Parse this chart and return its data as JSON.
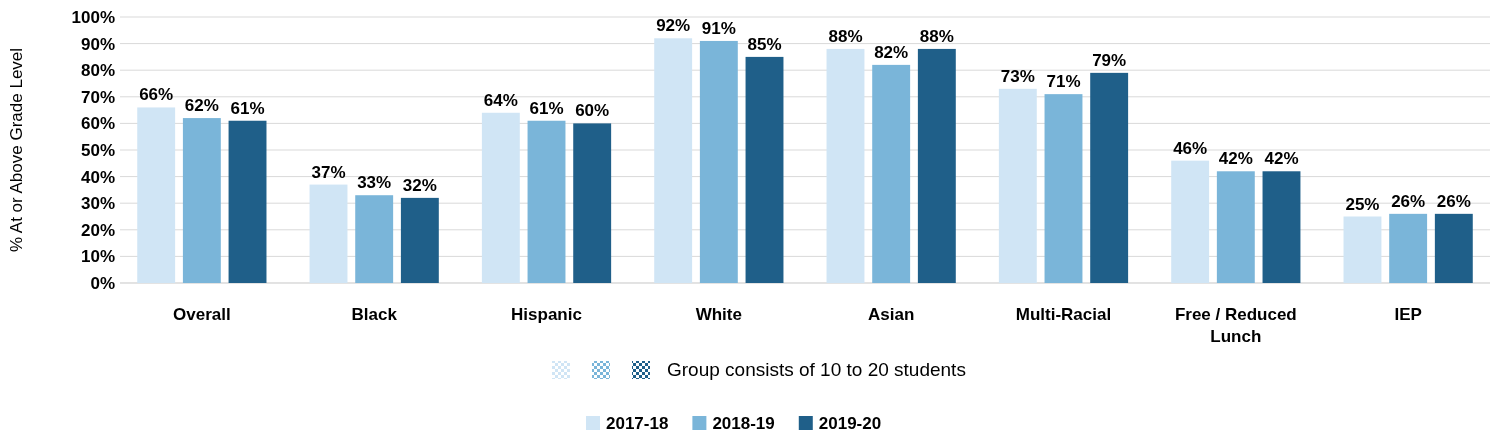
{
  "chart_data": {
    "type": "bar",
    "ylabel": "% At or Above Grade Level",
    "categories": [
      "Overall",
      "Black",
      "Hispanic",
      "White",
      "Asian",
      "Multi-Racial",
      "Free / Reduced Lunch",
      "IEP"
    ],
    "series": [
      {
        "name": "2017-18",
        "color": "#d0e5f5",
        "values": [
          66,
          37,
          64,
          92,
          88,
          73,
          46,
          25
        ],
        "value_labels": [
          "66%",
          "37%",
          "64%",
          "92%",
          "88%",
          "73%",
          "46%",
          "25%"
        ]
      },
      {
        "name": "2018-19",
        "color": "#7ab5d9",
        "values": [
          62,
          33,
          61,
          91,
          82,
          71,
          42,
          26
        ],
        "value_labels": [
          "62%",
          "33%",
          "61%",
          "91%",
          "82%",
          "71%",
          "42%",
          "26%"
        ]
      },
      {
        "name": "2019-20",
        "color": "#1f5f89",
        "values": [
          61,
          32,
          60,
          85,
          88,
          79,
          42,
          26
        ],
        "value_labels": [
          "61%",
          "32%",
          "60%",
          "85%",
          "88%",
          "79%",
          "42%",
          "26%"
        ]
      }
    ],
    "ylim": [
      0,
      100
    ],
    "yticks": [
      {
        "value": 0,
        "label": "0%"
      },
      {
        "value": 10,
        "label": "10%"
      },
      {
        "value": 20,
        "label": "20%"
      },
      {
        "value": 30,
        "label": "30%"
      },
      {
        "value": 40,
        "label": "40%"
      },
      {
        "value": 50,
        "label": "50%"
      },
      {
        "value": 60,
        "label": "60%"
      },
      {
        "value": 70,
        "label": "70%"
      },
      {
        "value": 80,
        "label": "80%"
      },
      {
        "value": 90,
        "label": "90%"
      },
      {
        "value": 100,
        "label": "100%"
      }
    ],
    "grid": "y",
    "legend": "bottom",
    "annotations": [
      "Group consists of 10 to 20 students"
    ]
  }
}
